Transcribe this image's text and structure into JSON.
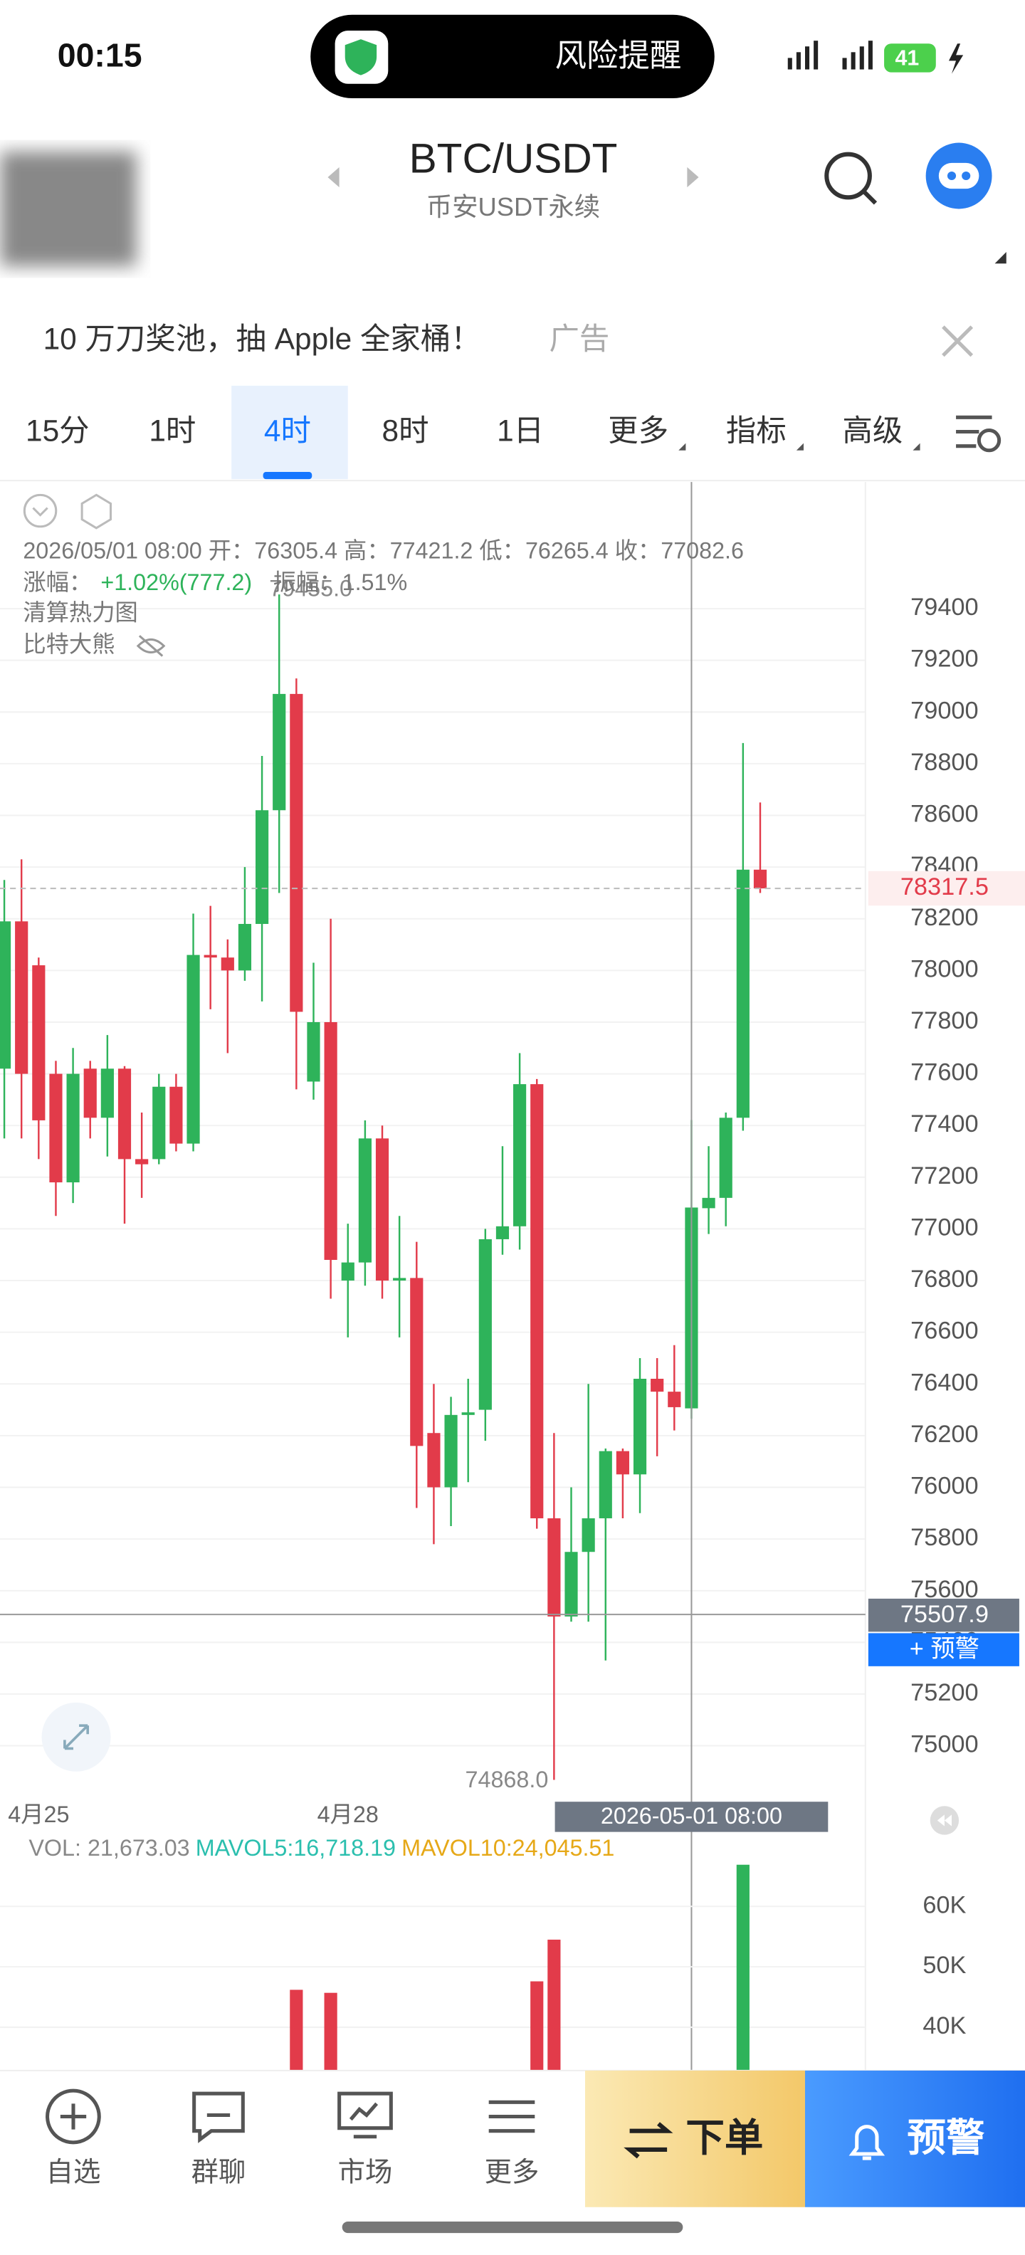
{
  "status": {
    "time": "00:15",
    "pill": "风险提醒",
    "battery": "41"
  },
  "header": {
    "pair": "BTC/USDT",
    "market": "币安USDT永续"
  },
  "ad": {
    "text": "10 万刀奖池，抽 Apple 全家桶！",
    "tag": "广告"
  },
  "tabs": {
    "items": [
      "15分",
      "1时",
      "4时",
      "8时",
      "1日",
      "更多",
      "指标",
      "高级"
    ],
    "active": 2
  },
  "info": {
    "ohlc": "2026/05/01 08:00 开：76305.4 高：77421.2 低：76265.4 收：77082.6",
    "change_label": "涨幅：",
    "change": "+1.02%(777.2)",
    "amplitude": "振幅：1.51%",
    "overlays": [
      "清算热力图",
      "比特大熊"
    ]
  },
  "chart_data": {
    "type": "candlestick",
    "open": [
      77620,
      78190,
      78020,
      77600,
      77180,
      77620,
      77430,
      77620,
      77270,
      77270,
      77550,
      77330,
      78060,
      78050,
      78000,
      78180,
      78620,
      79070,
      77570,
      77800,
      76800,
      76870,
      77350,
      76800,
      76810,
      76210,
      76000,
      76280,
      76300,
      76960,
      77010,
      77560,
      75880,
      75500,
      75750,
      75880,
      76140,
      76050,
      76420,
      76370,
      76305.4,
      77080,
      77120,
      77430,
      78390
    ],
    "high": [
      78350,
      78430,
      78050,
      77650,
      77700,
      77650,
      77750,
      77630,
      77450,
      77600,
      77600,
      78220,
      78250,
      78120,
      78400,
      78830,
      79455,
      79130,
      78030,
      78200,
      77020,
      77420,
      77400,
      77050,
      76950,
      76400,
      76350,
      76420,
      77000,
      77320,
      77680,
      77580,
      76210,
      76000,
      76400,
      76150,
      76150,
      76500,
      76500,
      76550,
      77421.2,
      77320,
      77450,
      78880,
      78650
    ],
    "low": [
      77350,
      77350,
      77270,
      77050,
      77100,
      77350,
      77280,
      77020,
      77120,
      77250,
      77300,
      77300,
      77850,
      77680,
      77960,
      77880,
      78300,
      77540,
      77500,
      76730,
      76580,
      76780,
      76730,
      76580,
      75920,
      75780,
      75850,
      76020,
      76180,
      76900,
      76920,
      75840,
      74868,
      75480,
      75480,
      75330,
      75880,
      75900,
      76120,
      76220,
      76265.4,
      76980,
      77010,
      77380,
      78300
    ],
    "close": [
      78190,
      77600,
      77420,
      77180,
      77600,
      77430,
      77620,
      77270,
      77250,
      77550,
      77330,
      78060,
      78050,
      78000,
      78180,
      78620,
      79070,
      77840,
      77800,
      76880,
      76870,
      77350,
      76800,
      76810,
      76160,
      76000,
      76280,
      76290,
      76960,
      77010,
      77560,
      75880,
      75500,
      75750,
      75880,
      76140,
      76050,
      76420,
      76370,
      76310,
      77082.6,
      77120,
      77430,
      78390,
      78317.5
    ],
    "ylim": [
      74800,
      79890
    ],
    "yticks": [
      75000,
      75200,
      75400,
      75600,
      75800,
      76000,
      76200,
      76400,
      76600,
      76800,
      77000,
      77200,
      77400,
      77600,
      77800,
      78000,
      78200,
      78400,
      78600,
      78800,
      79000,
      79200,
      79400
    ],
    "up_color": "#2eb35a",
    "down_color": "#e23b4a",
    "grid": true,
    "high_label": "79455.0",
    "low_label": "74868.0",
    "crosshair_price": 75507.9,
    "alert_button": "+ 预警",
    "x_labels": [
      {
        "index": 2,
        "label": "4月25"
      },
      {
        "index": 20,
        "label": "4月28"
      }
    ],
    "crosshair_time": "2026-05-01 08:00",
    "crosshair_index": 40,
    "volume": {
      "vol": "VOL: 21,673.03",
      "mavol5": "MAVOL5:16,718.19",
      "mavol10": "MAVOL10:24,045.51",
      "values": [
        null,
        null,
        null,
        null,
        null,
        null,
        null,
        null,
        null,
        null,
        null,
        null,
        null,
        null,
        null,
        null,
        null,
        46200,
        null,
        45700,
        null,
        null,
        null,
        null,
        null,
        null,
        null,
        null,
        null,
        null,
        null,
        47600,
        54500,
        null,
        null,
        null,
        null,
        null,
        null,
        null,
        null,
        null,
        null,
        66900,
        null
      ],
      "ylim": [
        0,
        69000
      ],
      "yticks": [
        {
          "value": 40000,
          "label": "40K"
        },
        {
          "value": 50000,
          "label": "50K"
        },
        {
          "value": 60000,
          "label": "60K"
        }
      ]
    }
  },
  "nav": {
    "items": [
      "自选",
      "群聊",
      "市场",
      "更多"
    ],
    "order": "下单",
    "alert": "预警"
  }
}
